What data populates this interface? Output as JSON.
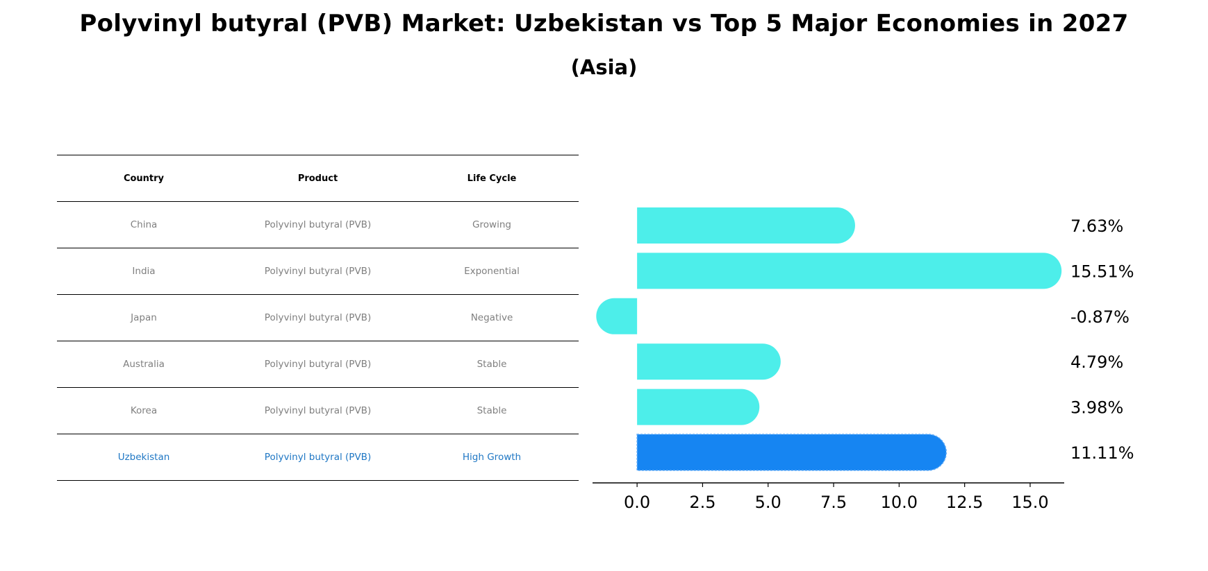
{
  "title": "Polyvinyl butyral (PVB) Market: Uzbekistan vs Top 5 Major Economies in 2027",
  "subtitle": "(Asia)",
  "table": {
    "headers": [
      "Country",
      "Product",
      "Life Cycle"
    ],
    "rows": [
      {
        "country": "China",
        "product": "Polyvinyl butyral (PVB)",
        "life_cycle": "Growing"
      },
      {
        "country": "India",
        "product": "Polyvinyl butyral (PVB)",
        "life_cycle": "Exponential"
      },
      {
        "country": "Japan",
        "product": "Polyvinyl butyral (PVB)",
        "life_cycle": "Negative"
      },
      {
        "country": "Australia",
        "product": "Polyvinyl butyral (PVB)",
        "life_cycle": "Stable"
      },
      {
        "country": "Korea",
        "product": "Polyvinyl butyral (PVB)",
        "life_cycle": "Stable"
      },
      {
        "country": "Uzbekistan",
        "product": "Polyvinyl butyral (PVB)",
        "life_cycle": "High Growth"
      }
    ]
  },
  "chart_data": {
    "type": "bar",
    "orientation": "horizontal",
    "categories": [
      "China",
      "India",
      "Japan",
      "Australia",
      "Korea",
      "Uzbekistan"
    ],
    "values": [
      7.63,
      15.51,
      -0.87,
      4.79,
      3.98,
      11.11
    ],
    "value_labels": [
      "7.63%",
      "15.51%",
      "-0.87%",
      "4.79%",
      "3.98%",
      "11.11%"
    ],
    "highlight_category": "Uzbekistan",
    "xlim": [
      -1.7,
      16.3
    ],
    "xticks": [
      0.0,
      2.5,
      5.0,
      7.5,
      10.0,
      12.5,
      15.0
    ],
    "xtick_labels": [
      "0.0",
      "2.5",
      "5.0",
      "7.5",
      "10.0",
      "12.5",
      "15.0"
    ],
    "colors": {
      "default": "#4deeea",
      "highlight": "#1685f2",
      "text": "#000000"
    }
  }
}
